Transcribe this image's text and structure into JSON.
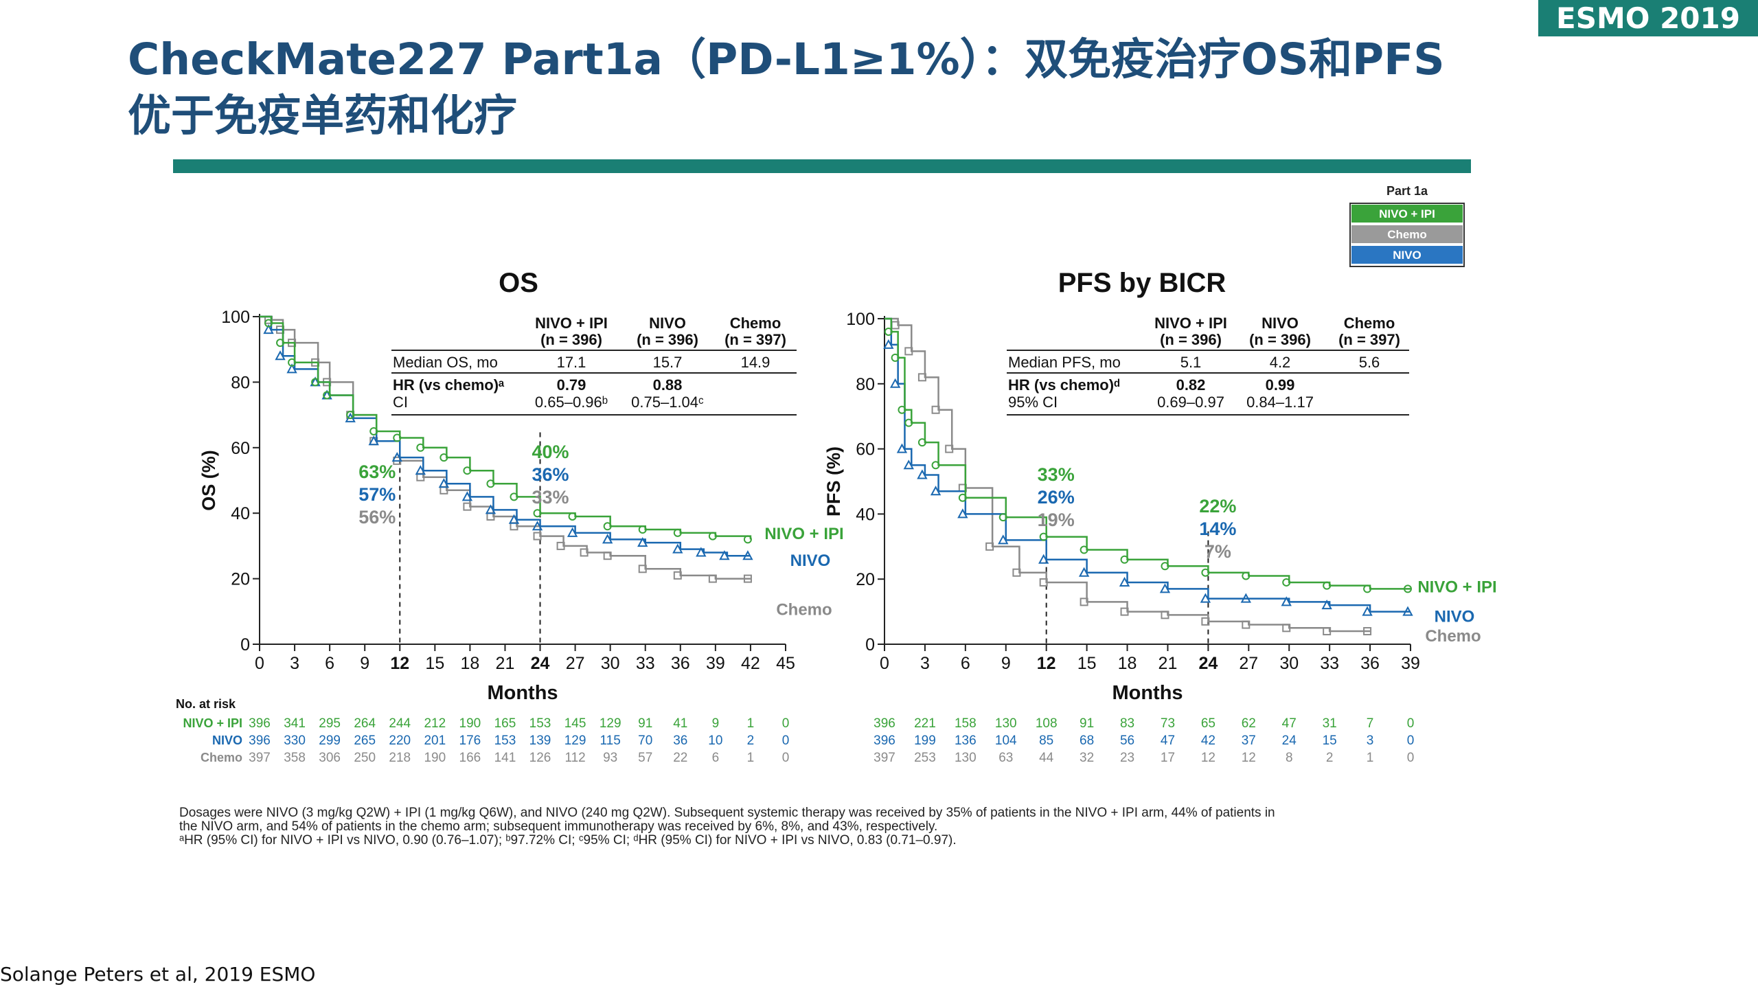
{
  "header": {
    "badge": "ESMO 2019",
    "title": "CheckMate227 Part1a（PD-L1≥1%）：双免疫治疗OS和PFS优于免疫单药和化疗"
  },
  "legend_box": {
    "title": "Part 1a",
    "items": [
      {
        "label": "NIVO + IPI",
        "color": "#3aa33a"
      },
      {
        "label": "Chemo",
        "color": "#9a9a9a"
      },
      {
        "label": "NIVO",
        "color": "#2a76c2"
      }
    ]
  },
  "colors": {
    "nivo_ipi": "#3aa33a",
    "nivo": "#1a68b0",
    "chemo": "#8a8a8a"
  },
  "chart_data": [
    {
      "type": "line",
      "title": "OS",
      "xlabel": "Months",
      "ylabel": "OS (%)",
      "xlim": [
        0,
        45
      ],
      "ylim": [
        0,
        100
      ],
      "x_ticks": [
        "0",
        "3",
        "6",
        "9",
        "12",
        "15",
        "18",
        "21",
        "24",
        "27",
        "30",
        "33",
        "36",
        "39",
        "42",
        "45"
      ],
      "y_ticks": [
        "0",
        "20",
        "40",
        "60",
        "80",
        "100"
      ],
      "series": [
        {
          "name": "NIVO + IPI",
          "key": "nivo_ipi",
          "points": [
            [
              0,
              100
            ],
            [
              1,
              98
            ],
            [
              2,
              92
            ],
            [
              3,
              86
            ],
            [
              5,
              80
            ],
            [
              6,
              76
            ],
            [
              8,
              70
            ],
            [
              10,
              65
            ],
            [
              12,
              63
            ],
            [
              14,
              60
            ],
            [
              16,
              57
            ],
            [
              18,
              53
            ],
            [
              20,
              49
            ],
            [
              22,
              45
            ],
            [
              24,
              40
            ],
            [
              27,
              39
            ],
            [
              30,
              36
            ],
            [
              33,
              35
            ],
            [
              36,
              34
            ],
            [
              39,
              33
            ],
            [
              42,
              32
            ]
          ]
        },
        {
          "name": "NIVO",
          "key": "nivo",
          "points": [
            [
              0,
              100
            ],
            [
              1,
              96
            ],
            [
              2,
              88
            ],
            [
              3,
              84
            ],
            [
              5,
              80
            ],
            [
              6,
              76
            ],
            [
              8,
              69
            ],
            [
              10,
              62
            ],
            [
              12,
              57
            ],
            [
              14,
              53
            ],
            [
              16,
              49
            ],
            [
              18,
              45
            ],
            [
              20,
              41
            ],
            [
              22,
              38
            ],
            [
              24,
              36
            ],
            [
              27,
              34
            ],
            [
              30,
              32
            ],
            [
              33,
              31
            ],
            [
              36,
              29
            ],
            [
              38,
              28
            ],
            [
              40,
              27
            ],
            [
              42,
              27
            ]
          ]
        },
        {
          "name": "Chemo",
          "key": "chemo",
          "points": [
            [
              0,
              100
            ],
            [
              1,
              99
            ],
            [
              2,
              96
            ],
            [
              3,
              92
            ],
            [
              5,
              86
            ],
            [
              6,
              80
            ],
            [
              8,
              70
            ],
            [
              10,
              62
            ],
            [
              12,
              56
            ],
            [
              14,
              51
            ],
            [
              16,
              47
            ],
            [
              18,
              42
            ],
            [
              20,
              39
            ],
            [
              22,
              36
            ],
            [
              24,
              33
            ],
            [
              26,
              30
            ],
            [
              28,
              28
            ],
            [
              30,
              27
            ],
            [
              33,
              23
            ],
            [
              36,
              21
            ],
            [
              39,
              20
            ],
            [
              42,
              20
            ]
          ]
        }
      ],
      "curve_labels": [
        "NIVO + IPI",
        "NIVO",
        "Chemo"
      ],
      "landmarks": [
        {
          "x": 12,
          "labels": [
            "63%",
            "57%",
            "56%"
          ]
        },
        {
          "x": 24,
          "labels": [
            "40%",
            "36%",
            "33%"
          ]
        }
      ],
      "summary_table": {
        "col_headers": [
          [
            "NIVO + IPI",
            "(n = 396)"
          ],
          [
            "NIVO",
            "(n = 396)"
          ],
          [
            "Chemo",
            "(n = 397)"
          ]
        ],
        "rows": [
          {
            "label": "Median OS, mo",
            "values": [
              "17.1",
              "15.7",
              "14.9"
            ],
            "bold": false
          },
          {
            "label": "HR (vs chemo)ᵃ",
            "values": [
              "0.79",
              "0.88",
              ""
            ],
            "bold": true
          },
          {
            "label": "CI",
            "values": [
              "0.65–0.96ᵇ",
              "0.75–1.04ᶜ",
              ""
            ],
            "bold": false
          }
        ]
      },
      "at_risk_title": "No. at risk",
      "at_risk": [
        {
          "label": "NIVO + IPI",
          "key": "nivo_ipi",
          "values": [
            "396",
            "341",
            "295",
            "264",
            "244",
            "212",
            "190",
            "165",
            "153",
            "145",
            "129",
            "91",
            "41",
            "9",
            "1",
            "0"
          ]
        },
        {
          "label": "NIVO",
          "key": "nivo",
          "values": [
            "396",
            "330",
            "299",
            "265",
            "220",
            "201",
            "176",
            "153",
            "139",
            "129",
            "115",
            "70",
            "36",
            "10",
            "2",
            "0"
          ]
        },
        {
          "label": "Chemo",
          "key": "chemo",
          "values": [
            "397",
            "358",
            "306",
            "250",
            "218",
            "190",
            "166",
            "141",
            "126",
            "112",
            "93",
            "57",
            "22",
            "6",
            "1",
            "0"
          ]
        }
      ]
    },
    {
      "type": "line",
      "title": "PFS by BICR",
      "xlabel": "Months",
      "ylabel": "PFS (%)",
      "xlim": [
        0,
        39
      ],
      "ylim": [
        0,
        100
      ],
      "x_ticks": [
        "0",
        "3",
        "6",
        "9",
        "12",
        "15",
        "18",
        "21",
        "24",
        "27",
        "30",
        "33",
        "36",
        "39"
      ],
      "y_ticks": [
        "0",
        "20",
        "40",
        "60",
        "80",
        "100"
      ],
      "series": [
        {
          "name": "NIVO + IPI",
          "key": "nivo_ipi",
          "points": [
            [
              0,
              100
            ],
            [
              0.5,
              96
            ],
            [
              1,
              88
            ],
            [
              1.5,
              72
            ],
            [
              2,
              68
            ],
            [
              3,
              62
            ],
            [
              4,
              55
            ],
            [
              6,
              45
            ],
            [
              9,
              39
            ],
            [
              12,
              33
            ],
            [
              15,
              29
            ],
            [
              18,
              26
            ],
            [
              21,
              24
            ],
            [
              24,
              22
            ],
            [
              27,
              21
            ],
            [
              30,
              19
            ],
            [
              33,
              18
            ],
            [
              36,
              17
            ],
            [
              39,
              17
            ]
          ]
        },
        {
          "name": "NIVO",
          "key": "nivo",
          "points": [
            [
              0,
              100
            ],
            [
              0.5,
              92
            ],
            [
              1,
              80
            ],
            [
              1.5,
              60
            ],
            [
              2,
              55
            ],
            [
              3,
              52
            ],
            [
              4,
              47
            ],
            [
              6,
              40
            ],
            [
              9,
              32
            ],
            [
              12,
              26
            ],
            [
              15,
              22
            ],
            [
              18,
              19
            ],
            [
              21,
              17
            ],
            [
              24,
              14
            ],
            [
              27,
              14
            ],
            [
              30,
              13
            ],
            [
              33,
              12
            ],
            [
              36,
              10
            ],
            [
              39,
              10
            ]
          ]
        },
        {
          "name": "Chemo",
          "key": "chemo",
          "points": [
            [
              0,
              100
            ],
            [
              1,
              98
            ],
            [
              2,
              90
            ],
            [
              3,
              82
            ],
            [
              4,
              72
            ],
            [
              5,
              60
            ],
            [
              6,
              48
            ],
            [
              8,
              30
            ],
            [
              10,
              22
            ],
            [
              12,
              19
            ],
            [
              15,
              13
            ],
            [
              18,
              10
            ],
            [
              21,
              9
            ],
            [
              24,
              7
            ],
            [
              27,
              6
            ],
            [
              30,
              5
            ],
            [
              33,
              4
            ],
            [
              36,
              4
            ]
          ]
        }
      ],
      "curve_labels": [
        "NIVO + IPI",
        "NIVO",
        "Chemo"
      ],
      "landmarks": [
        {
          "x": 12,
          "labels": [
            "33%",
            "26%",
            "19%"
          ]
        },
        {
          "x": 24,
          "labels": [
            "22%",
            "14%",
            "7%"
          ]
        }
      ],
      "summary_table": {
        "col_headers": [
          [
            "NIVO + IPI",
            "(n = 396)"
          ],
          [
            "NIVO",
            "(n = 396)"
          ],
          [
            "Chemo",
            "(n = 397)"
          ]
        ],
        "rows": [
          {
            "label": "Median PFS, mo",
            "values": [
              "5.1",
              "4.2",
              "5.6"
            ],
            "bold": false
          },
          {
            "label": "HR (vs chemo)ᵈ",
            "values": [
              "0.82",
              "0.99",
              ""
            ],
            "bold": true
          },
          {
            "label": "95% CI",
            "values": [
              "0.69–0.97",
              "0.84–1.17",
              ""
            ],
            "bold": false
          }
        ]
      },
      "at_risk": [
        {
          "key": "nivo_ipi",
          "values": [
            "396",
            "221",
            "158",
            "130",
            "108",
            "91",
            "83",
            "73",
            "65",
            "62",
            "47",
            "31",
            "7",
            "0"
          ]
        },
        {
          "key": "nivo",
          "values": [
            "396",
            "199",
            "136",
            "104",
            "85",
            "68",
            "56",
            "47",
            "42",
            "37",
            "24",
            "15",
            "3",
            "0"
          ]
        },
        {
          "key": "chemo",
          "values": [
            "397",
            "253",
            "130",
            "63",
            "44",
            "32",
            "23",
            "17",
            "12",
            "12",
            "8",
            "2",
            "1",
            "0"
          ]
        }
      ]
    }
  ],
  "footnotes": [
    "Dosages were NIVO (3 mg/kg Q2W) + IPI (1 mg/kg Q6W), and NIVO (240 mg Q2W). Subsequent systemic therapy was received by 35% of patients in the NIVO + IPI arm, 44% of patients in",
    "the NIVO arm, and 54% of patients in the chemo arm; subsequent immunotherapy was received by 6%, 8%, and 43%, respectively.",
    "ᵃHR (95% CI) for NIVO + IPI vs NIVO, 0.90 (0.76–1.07); ᵇ97.72% CI; ᶜ95% CI; ᵈHR (95% CI) for NIVO + IPI vs NIVO, 0.83 (0.71–0.97)."
  ],
  "source": "Solange Peters et al, 2019 ESMO"
}
